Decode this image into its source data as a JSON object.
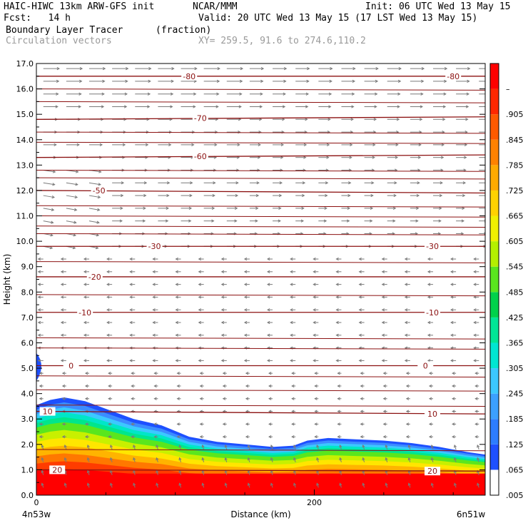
{
  "header": {
    "model": "HAIC-HIWC 13km ARW-GFS init",
    "org": "NCAR/MMM",
    "init": "Init: 06 UTC Wed 13 May 15",
    "fcst": "Fcst:   14 h",
    "valid": "Valid: 20 UTC Wed 13 May 15 (17 LST Wed 13 May 15)",
    "field": "Boundary Layer Tracer",
    "units": "(fraction)",
    "vectors": "Circulation vectors",
    "xy": "XY= 259.5, 91.6 to 274.6,110.2"
  },
  "chart_data": {
    "type": "heatmap",
    "xlabel": "Distance (km)",
    "ylabel": "Height (km)",
    "xlim": [
      0,
      323
    ],
    "ylim": [
      0,
      17
    ],
    "x_ticks": [
      "0",
      "200"
    ],
    "y_ticks": [
      "0.0",
      "1.0",
      "2.0",
      "3.0",
      "4.0",
      "5.0",
      "6.0",
      "7.0",
      "8.0",
      "9.0",
      "10.0",
      "11.0",
      "12.0",
      "13.0",
      "14.0",
      "15.0",
      "16.0",
      "17.0"
    ],
    "left_endpoint": "4n53w",
    "right_endpoint": "6n51w",
    "colorbar": {
      "labels": [
        ".005",
        ".065",
        ".125",
        ".185",
        ".245",
        ".305",
        ".365",
        ".425",
        ".485",
        ".545",
        ".605",
        ".665",
        ".725",
        ".785",
        ".845",
        ".905",
        "–"
      ],
      "colors": [
        "#ffffff",
        "#1e50ff",
        "#2d7dff",
        "#3ca0ff",
        "#3cc8ff",
        "#00e6d2",
        "#00e696",
        "#00d24b",
        "#5ae61e",
        "#b4f000",
        "#f0f000",
        "#ffd200",
        "#ffaa00",
        "#ff8200",
        "#ff5a00",
        "#ff2800",
        "#ff0000"
      ]
    },
    "plume_top_km": [
      [
        0,
        3.55
      ],
      [
        10,
        3.75
      ],
      [
        20,
        3.85
      ],
      [
        35,
        3.7
      ],
      [
        50,
        3.4
      ],
      [
        70,
        3.0
      ],
      [
        90,
        2.75
      ],
      [
        110,
        2.3
      ],
      [
        130,
        2.1
      ],
      [
        150,
        2.0
      ],
      [
        170,
        1.9
      ],
      [
        185,
        1.95
      ],
      [
        195,
        2.15
      ],
      [
        210,
        2.25
      ],
      [
        230,
        2.2
      ],
      [
        250,
        2.15
      ],
      [
        270,
        2.05
      ],
      [
        290,
        1.9
      ],
      [
        310,
        1.7
      ],
      [
        323,
        1.6
      ]
    ],
    "temperature_contours": [
      {
        "value": "-80",
        "height_km": [
          16.5,
          16.5
        ],
        "labels": [
          [
            110,
            16.5
          ],
          [
            300,
            16.5
          ]
        ]
      },
      {
        "value": "-70",
        "height_km": [
          14.8,
          14.9
        ],
        "labels": [
          [
            118,
            14.85
          ]
        ]
      },
      {
        "value": "-60",
        "height_km": [
          13.3,
          13.4
        ],
        "labels": [
          [
            118,
            13.35
          ]
        ]
      },
      {
        "value": "-50",
        "height_km": [
          12.0,
          11.9
        ],
        "labels": [
          [
            45,
            12.0
          ]
        ]
      },
      {
        "value": "-30",
        "height_km": [
          9.8,
          9.8
        ],
        "labels": [
          [
            85,
            9.8
          ],
          [
            285,
            9.8
          ]
        ]
      },
      {
        "value": "-20",
        "height_km": [
          8.6,
          8.6
        ],
        "labels": [
          [
            42,
            8.6
          ]
        ]
      },
      {
        "value": "-10",
        "height_km": [
          7.2,
          7.2
        ],
        "labels": [
          [
            35,
            7.2
          ],
          [
            285,
            7.2
          ]
        ]
      },
      {
        "value": "0",
        "height_km": [
          5.1,
          5.1
        ],
        "labels": [
          [
            25,
            5.1
          ],
          [
            280,
            5.1
          ]
        ]
      },
      {
        "value": "10",
        "height_km": [
          3.3,
          3.2
        ],
        "labels": [
          [
            8,
            3.3
          ],
          [
            285,
            3.2
          ]
        ]
      },
      {
        "value": "20",
        "height_km": [
          1.0,
          0.95
        ],
        "labels": [
          [
            15,
            1.0
          ],
          [
            285,
            0.95
          ]
        ]
      }
    ],
    "plain_contour_heights_km": [
      16.0,
      15.5,
      14.3,
      13.9,
      12.8,
      12.5,
      11.4,
      11.0,
      10.6,
      10.3,
      9.2,
      7.9,
      6.2,
      5.8,
      4.7,
      4.15,
      3.55,
      1.8
    ],
    "wind_regimes": [
      {
        "layer_km": [
          9.5,
          17.0
        ],
        "direction": "eastward",
        "strength": "strong"
      },
      {
        "layer_km": [
          0.0,
          9.5
        ],
        "direction": "westward",
        "strength": "weak"
      }
    ]
  }
}
